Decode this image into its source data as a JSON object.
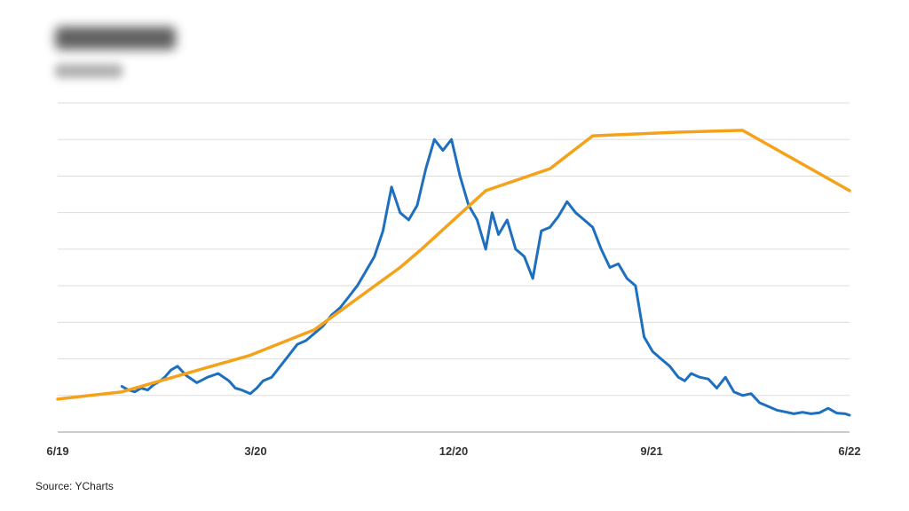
{
  "source_note": "Source: YCharts",
  "colors": {
    "series_blue": "#1f6fbf",
    "series_orange": "#f5a21b",
    "grid": "#dddddd",
    "axis": "#999999"
  },
  "chart_data": {
    "type": "line",
    "title": "",
    "xlabel": "",
    "ylabel": "",
    "x_tick_labels": [
      "6/19",
      "3/20",
      "12/20",
      "9/21",
      "6/22"
    ],
    "xlim": [
      0,
      37
    ],
    "ylim": [
      0,
      90
    ],
    "grid": true,
    "series": [
      {
        "color": "#1f6fbf",
        "x": [
          3,
          3.3,
          3.6,
          3.9,
          4.2,
          4.5,
          4.8,
          5.0,
          5.3,
          5.6,
          6.0,
          6.5,
          7.0,
          7.5,
          8.0,
          8.3,
          8.6,
          9.0,
          9.3,
          9.6,
          10.0,
          10.4,
          10.8,
          11.2,
          11.6,
          12.0,
          12.4,
          12.8,
          13.2,
          13.6,
          14.0,
          14.4,
          14.8,
          15.2,
          15.6,
          16.0,
          16.4,
          16.8,
          17.2,
          17.6,
          18.0,
          18.4,
          18.8,
          19.2,
          19.6,
          20.0,
          20.3,
          20.6,
          21.0,
          21.4,
          21.8,
          22.2,
          22.6,
          23.0,
          23.4,
          23.8,
          24.2,
          24.6,
          25.0,
          25.4,
          25.8,
          26.2,
          26.6,
          27.0,
          27.4,
          27.8,
          28.2,
          28.6,
          29.0,
          29.3,
          29.6,
          30.0,
          30.4,
          30.8,
          31.2,
          31.6,
          32.0,
          32.4,
          32.8,
          33.2,
          33.6,
          34.0,
          34.4,
          34.8,
          35.2,
          35.6,
          36.0,
          36.4,
          36.8,
          37.0
        ],
        "y": [
          12.5,
          11.5,
          11,
          12,
          11.5,
          13,
          14,
          15,
          17,
          18,
          15.5,
          13.5,
          15,
          16,
          14,
          12,
          11.5,
          10.5,
          12,
          14,
          15,
          18,
          21,
          24,
          25,
          27,
          29,
          32,
          34,
          37,
          40,
          44,
          48,
          55,
          67,
          60,
          58,
          62,
          72,
          80,
          77,
          80,
          70,
          62,
          58,
          50,
          60,
          54,
          58,
          50,
          48,
          42,
          55,
          56,
          59,
          63,
          60,
          58,
          56,
          50,
          45,
          46,
          42,
          40,
          26,
          22,
          20,
          18,
          15,
          14,
          16,
          15,
          14.5,
          12,
          15,
          11,
          10,
          10.5,
          8,
          7,
          6,
          5.5,
          5,
          5.4,
          5,
          5.3,
          6.5,
          5.2,
          5,
          4.6
        ]
      },
      {
        "color": "#f5a21b",
        "x": [
          0,
          3,
          9,
          12,
          16,
          17,
          20,
          23,
          25,
          29,
          32,
          37
        ],
        "y": [
          9,
          11,
          21,
          28,
          45,
          50,
          66,
          72,
          81,
          82,
          82.5,
          66
        ]
      }
    ]
  }
}
